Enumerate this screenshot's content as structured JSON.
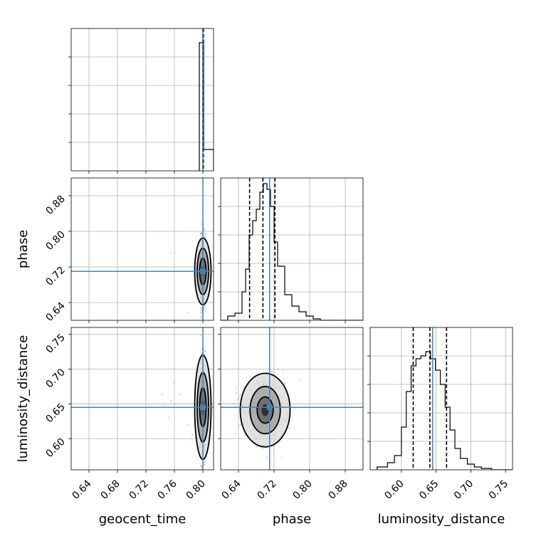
{
  "chart_data": {
    "type": "corner",
    "parameters": [
      "geocent_time",
      "phase",
      "luminosity_distance"
    ],
    "axis_labels": [
      "geocent_time",
      "phase",
      "luminosity_distance"
    ],
    "ranges": {
      "geocent_time": [
        0.615,
        0.815
      ],
      "phase": [
        0.6,
        0.92
      ],
      "luminosity_distance": [
        0.555,
        0.76
      ]
    },
    "ticks": {
      "geocent_time": [
        0.64,
        0.68,
        0.72,
        0.76,
        0.8
      ],
      "phase": [
        0.64,
        0.72,
        0.8,
        0.88
      ],
      "luminosity_distance": [
        0.6,
        0.65,
        0.7,
        0.75
      ]
    },
    "tick_labels": {
      "geocent_time": [
        "0.64",
        "0.68",
        "0.72",
        "0.76",
        "0.80"
      ],
      "phase": [
        "0.64",
        "0.72",
        "0.80",
        "0.88"
      ],
      "luminosity_distance": [
        "0.60",
        "0.65",
        "0.70",
        "0.75"
      ]
    },
    "truths": {
      "geocent_time": 0.8,
      "phase": 0.71,
      "luminosity_distance": 0.645
    },
    "truth_color": "#4682b4",
    "quantiles": {
      "geocent_time": [
        0.7998,
        0.8003,
        0.8008
      ],
      "phase": [
        0.665,
        0.695,
        0.722
      ],
      "luminosity_distance": [
        0.617,
        0.641,
        0.665
      ]
    },
    "histograms": {
      "geocent_time": {
        "bin_edges": [
          0.795,
          0.7995,
          0.801,
          0.815
        ],
        "counts": [
          0.9,
          0.92,
          0.15
        ]
      },
      "phase": {
        "bin_edges": [
          0.6,
          0.616,
          0.632,
          0.648,
          0.656,
          0.664,
          0.672,
          0.68,
          0.688,
          0.696,
          0.704,
          0.712,
          0.72,
          0.728,
          0.744,
          0.76,
          0.776,
          0.792,
          0.808,
          0.824,
          0.92
        ],
        "counts": [
          0.0,
          0.03,
          0.05,
          0.2,
          0.36,
          0.6,
          0.7,
          0.78,
          0.9,
          0.96,
          0.92,
          0.8,
          0.55,
          0.38,
          0.18,
          0.1,
          0.06,
          0.03,
          0.01,
          0.0
        ]
      },
      "luminosity_distance": {
        "bin_edges": [
          0.565,
          0.58,
          0.59,
          0.6,
          0.607,
          0.614,
          0.621,
          0.628,
          0.635,
          0.642,
          0.649,
          0.656,
          0.663,
          0.67,
          0.677,
          0.685,
          0.695,
          0.705,
          0.715,
          0.73,
          0.76
        ],
        "counts": [
          0.02,
          0.05,
          0.1,
          0.3,
          0.55,
          0.73,
          0.78,
          0.8,
          0.83,
          0.78,
          0.7,
          0.6,
          0.44,
          0.28,
          0.15,
          0.08,
          0.04,
          0.02,
          0.01,
          0.0
        ]
      }
    },
    "samples_2d": {
      "geocent_time_vs_phase": {
        "center": [
          0.8,
          0.71
        ],
        "spread": [
          0.0018,
          0.04
        ],
        "contour_widths": [
          [
            0.0045,
            0.03
          ],
          [
            0.008,
            0.052
          ],
          [
            0.0115,
            0.075
          ]
        ]
      },
      "geocent_time_vs_luminosity_distance": {
        "center": [
          0.8,
          0.645
        ],
        "spread": [
          0.0018,
          0.032
        ],
        "contour_widths": [
          [
            0.0045,
            0.028
          ],
          [
            0.008,
            0.05
          ],
          [
            0.0115,
            0.075
          ]
        ]
      },
      "phase_vs_luminosity_distance": {
        "center": [
          0.7,
          0.641
        ],
        "spread": [
          0.022,
          0.02
        ],
        "contour_widths": [
          [
            0.018,
            0.019
          ],
          [
            0.034,
            0.034
          ],
          [
            0.056,
            0.053
          ]
        ]
      }
    }
  }
}
